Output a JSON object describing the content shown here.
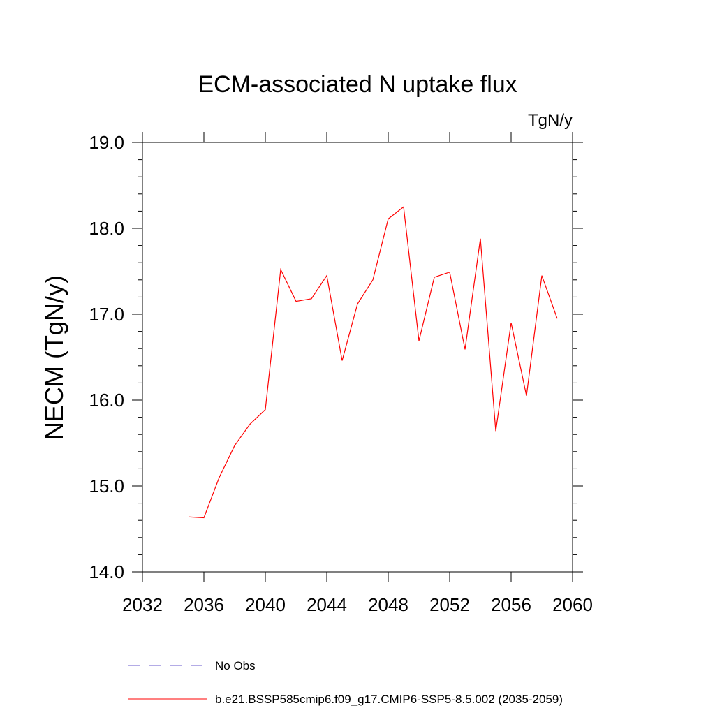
{
  "chart_data": {
    "type": "line",
    "title": "ECM-associated N uptake flux",
    "units_label": "TgN/y",
    "ylabel": "NECM  (TgN/y)",
    "xlabel": "",
    "xlim": [
      2032,
      2060
    ],
    "ylim": [
      14.0,
      19.0
    ],
    "x_ticks": [
      "2032",
      "2036",
      "2040",
      "2044",
      "2048",
      "2052",
      "2056",
      "2060"
    ],
    "y_ticks": [
      "14.0",
      "15.0",
      "16.0",
      "17.0",
      "18.0",
      "19.0"
    ],
    "grid": false,
    "series": [
      {
        "name": "b.e21.BSSP585cmip6.f09_g17.CMIP6-SSP5-8.5.002 (2035-2059)",
        "color": "#ff0000",
        "x": [
          2035,
          2036,
          2037,
          2038,
          2039,
          2040,
          2041,
          2042,
          2043,
          2044,
          2045,
          2046,
          2047,
          2048,
          2049,
          2050,
          2051,
          2052,
          2053,
          2054,
          2055,
          2056,
          2057,
          2058,
          2059
        ],
        "y": [
          14.64,
          14.63,
          15.1,
          15.47,
          15.72,
          15.89,
          17.52,
          17.15,
          17.18,
          17.45,
          16.46,
          17.12,
          17.4,
          18.11,
          18.25,
          16.69,
          17.43,
          17.49,
          16.59,
          17.88,
          15.64,
          16.9,
          16.05,
          17.45,
          16.95
        ]
      }
    ],
    "legend": {
      "placement": "bottom-left",
      "entries": [
        {
          "label": "No Obs",
          "color": "#6a5acd",
          "style": "dashed"
        },
        {
          "label": "b.e21.BSSP585cmip6.f09_g17.CMIP6-SSP5-8.5.002 (2035-2059)",
          "color": "#ff0000",
          "style": "solid"
        }
      ]
    }
  }
}
